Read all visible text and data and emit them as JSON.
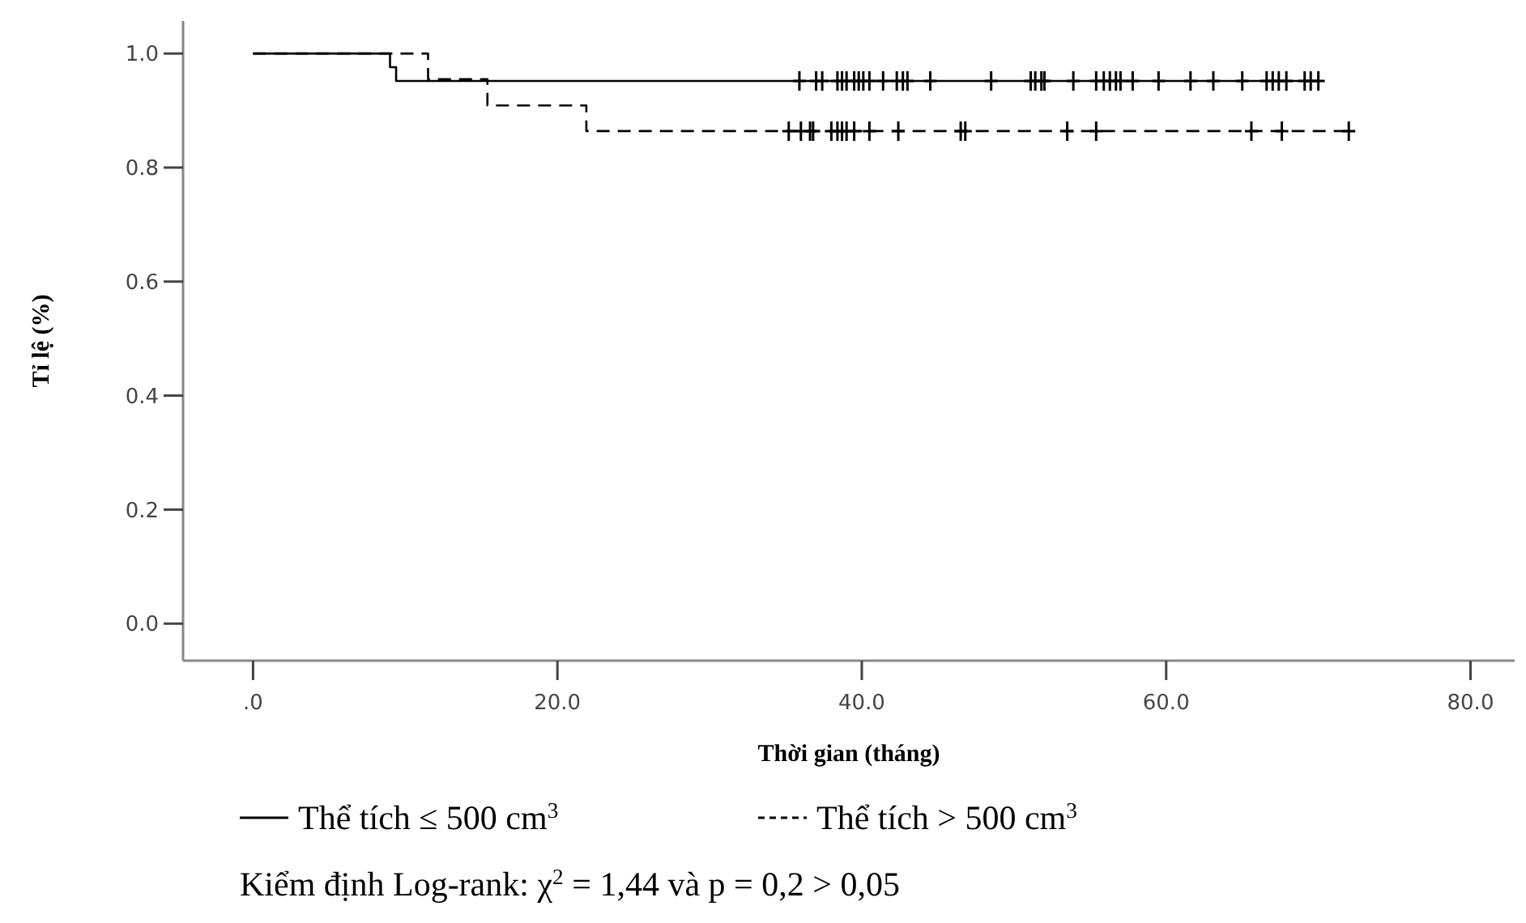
{
  "chart_data": {
    "type": "step",
    "xlabel": "Thời gian (tháng)",
    "ylabel": "Tỉ lệ (%)",
    "xlim": [
      -4.6,
      82.9
    ],
    "ylim": [
      -0.065,
      1.057
    ],
    "xticks": [
      {
        "value": 0,
        "label": ".0"
      },
      {
        "value": 20,
        "label": "20.0"
      },
      {
        "value": 40,
        "label": "40.0"
      },
      {
        "value": 60,
        "label": "60.0"
      },
      {
        "value": 80,
        "label": "80.0"
      }
    ],
    "yticks": [
      {
        "value": 0,
        "label": "0.0"
      },
      {
        "value": 0.2,
        "label": "0.2"
      },
      {
        "value": 0.4,
        "label": "0.4"
      },
      {
        "value": 0.6,
        "label": "0.6"
      },
      {
        "value": 0.8,
        "label": "0.8"
      },
      {
        "value": 1,
        "label": "1.0"
      }
    ],
    "grid": false,
    "legend": "bottom",
    "series": [
      {
        "name": "Thể tích ≤ 500 cm$^{3}$",
        "color": "#000000",
        "line_style": "solid",
        "x": [
          0,
          9.0,
          9.4,
          70.0
        ],
        "values": [
          1,
          0.976,
          0.952,
          0.952
        ]
      },
      {
        "name": "Thể tích > 500 cm$^{3}$",
        "color": "#000000",
        "line_style": "dashed",
        "x": [
          0,
          11.5,
          15.4,
          21.9,
          72.0
        ],
        "values": [
          1,
          0.955,
          0.909,
          0.864,
          0.864
        ]
      },
      {
        "type": "scatter",
        "color": "#000000",
        "marker": "cross",
        "x": [
          35.9,
          37.0,
          37.4,
          38.4,
          38.7,
          39.0,
          39.5,
          39.8,
          40.1,
          40.5,
          41.4,
          42.3,
          42.7,
          43.0,
          44.5,
          48.5,
          51.1,
          51.4,
          51.8,
          52.0,
          53.9,
          55.4,
          55.9,
          56.3,
          56.7,
          57.0,
          57.8,
          59.5,
          61.6,
          63.1,
          65.0,
          66.6,
          67.0,
          67.4,
          67.9,
          69.1,
          69.5,
          70.0
        ],
        "values": [
          0.952,
          0.952,
          0.952,
          0.952,
          0.952,
          0.952,
          0.952,
          0.952,
          0.952,
          0.952,
          0.952,
          0.952,
          0.952,
          0.952,
          0.952,
          0.952,
          0.952,
          0.952,
          0.952,
          0.952,
          0.952,
          0.952,
          0.952,
          0.952,
          0.952,
          0.952,
          0.952,
          0.952,
          0.952,
          0.952,
          0.952,
          0.952,
          0.952,
          0.952,
          0.952,
          0.952,
          0.952,
          0.952
        ]
      },
      {
        "type": "scatter",
        "color": "#000000",
        "marker": "cross",
        "x": [
          35.2,
          36.0,
          36.6,
          36.8,
          38.0,
          38.4,
          38.7,
          39.0,
          39.5,
          40.5,
          42.4,
          46.5,
          46.8,
          53.5,
          55.4,
          65.6,
          67.6,
          72.0
        ],
        "values": [
          0.864,
          0.864,
          0.864,
          0.864,
          0.864,
          0.864,
          0.864,
          0.864,
          0.864,
          0.864,
          0.864,
          0.864,
          0.864,
          0.864,
          0.864,
          0.864,
          0.864,
          0.864
        ]
      }
    ],
    "annotations": [
      "Kiểm định Log-rank: χ$^{2}$ = 1,44 và p = 0,2 > 0,05"
    ]
  }
}
